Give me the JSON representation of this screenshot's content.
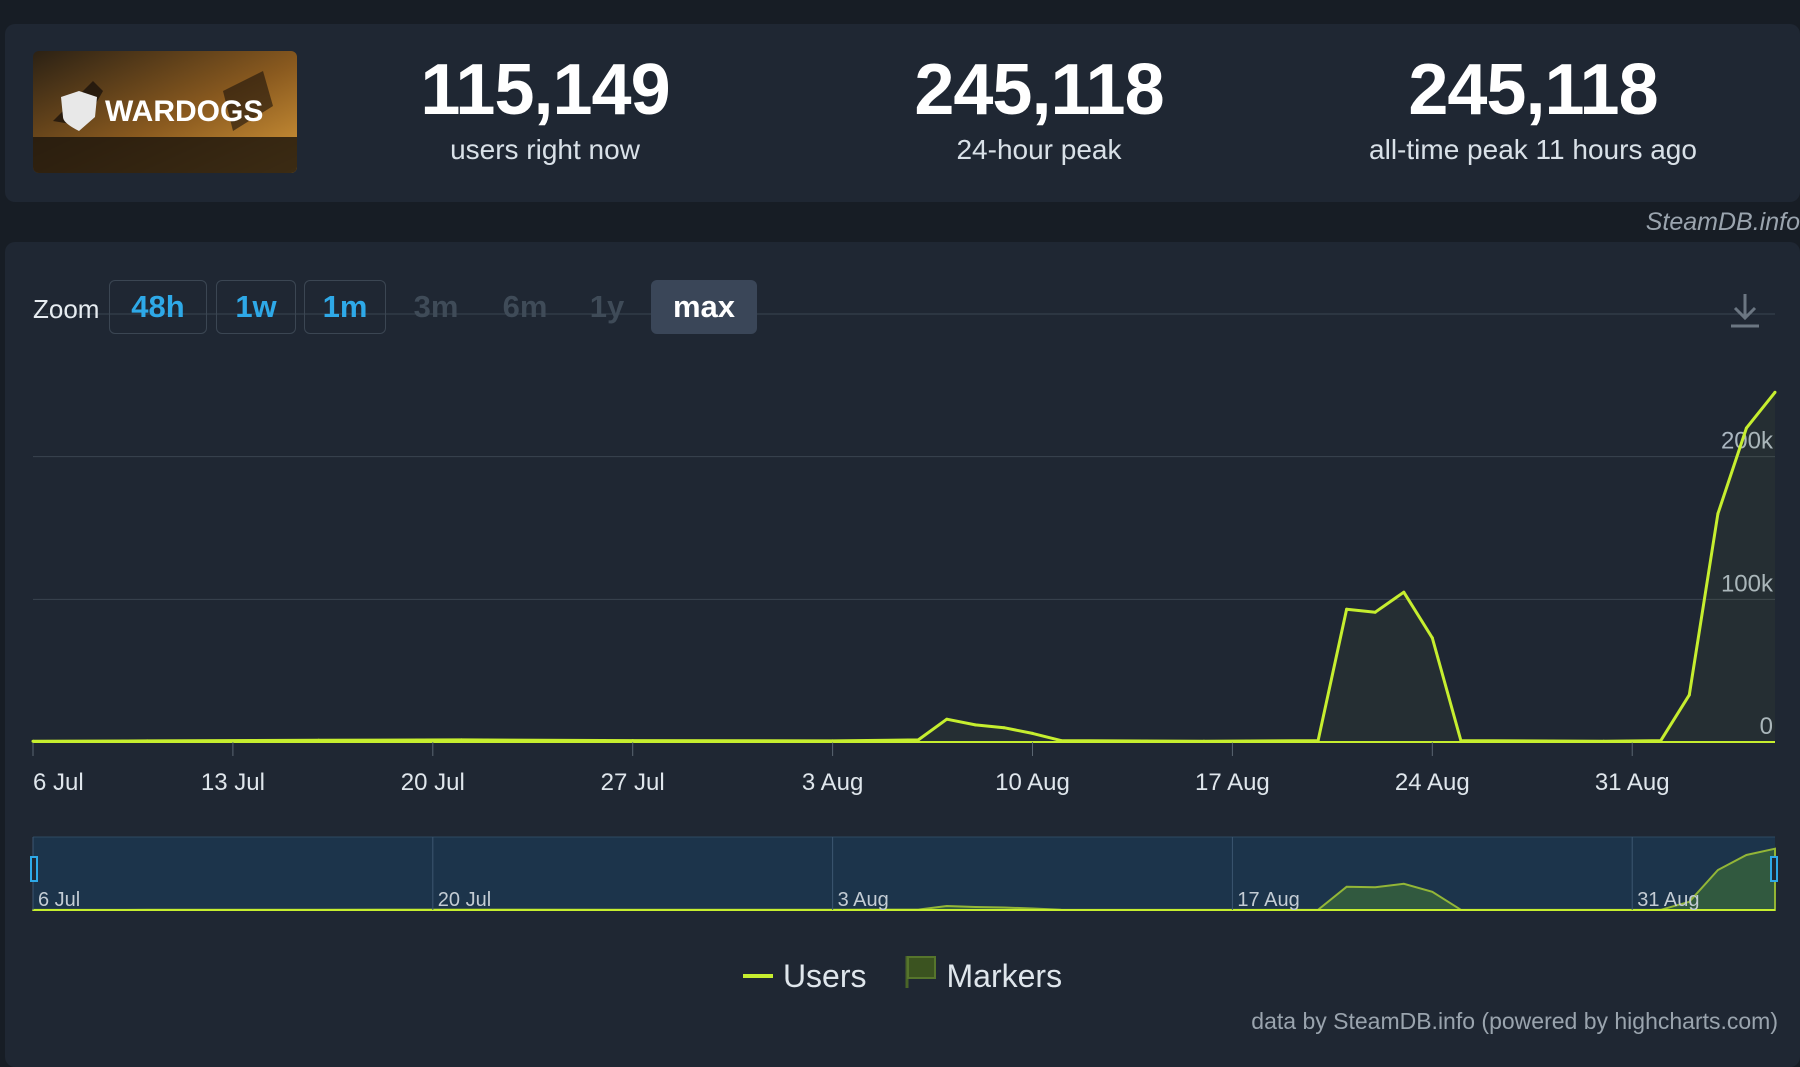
{
  "game": {
    "logo_text": "WARDOGS"
  },
  "stats": [
    {
      "value": "115,149",
      "label": "users right now"
    },
    {
      "value": "245,118",
      "label": "24-hour peak"
    },
    {
      "value": "245,118",
      "label": "all-time peak 11 hours ago"
    }
  ],
  "credit_top": "SteamDB.info",
  "zoom": {
    "label": "Zoom",
    "buttons": [
      {
        "label": "48h",
        "state": "enabled"
      },
      {
        "label": "1w",
        "state": "enabled"
      },
      {
        "label": "1m",
        "state": "enabled"
      },
      {
        "label": "3m",
        "state": "disabled"
      },
      {
        "label": "6m",
        "state": "disabled"
      },
      {
        "label": "1y",
        "state": "disabled"
      },
      {
        "label": "max",
        "state": "active"
      }
    ]
  },
  "legend": {
    "users": "Users",
    "markers": "Markers"
  },
  "credit_bottom": "data by SteamDB.info (powered by highcharts.com)",
  "colors": {
    "series": "#c6ee2f",
    "accent": "#2ea9e8",
    "background": "#171d25",
    "panel": "#1f2733"
  },
  "icons": {
    "download": "download-icon",
    "flag": "flag-icon"
  },
  "chart_data": {
    "type": "line",
    "x_start": "2024-07-06",
    "y_ticks": [
      "0",
      "100k",
      "200k"
    ],
    "ylim": [
      0,
      300000
    ],
    "x_tick_labels": [
      "6 Jul",
      "13 Jul",
      "20 Jul",
      "27 Jul",
      "3 Aug",
      "10 Aug",
      "17 Aug",
      "24 Aug",
      "31 Aug"
    ],
    "navigator_labels": [
      "6 Jul",
      "20 Jul",
      "3 Aug",
      "17 Aug",
      "31 Aug"
    ],
    "series": [
      {
        "name": "Users",
        "points": [
          [
            "2024-07-06",
            500
          ],
          [
            "2024-07-10",
            800
          ],
          [
            "2024-07-16",
            1200
          ],
          [
            "2024-07-21",
            1500
          ],
          [
            "2024-07-27",
            1000
          ],
          [
            "2024-08-03",
            800
          ],
          [
            "2024-08-06",
            1500
          ],
          [
            "2024-08-07",
            16000
          ],
          [
            "2024-08-08",
            12000
          ],
          [
            "2024-08-09",
            10000
          ],
          [
            "2024-08-10",
            6000
          ],
          [
            "2024-08-11",
            1000
          ],
          [
            "2024-08-16",
            500
          ],
          [
            "2024-08-20",
            1000
          ],
          [
            "2024-08-21",
            93000
          ],
          [
            "2024-08-22",
            91000
          ],
          [
            "2024-08-23",
            105000
          ],
          [
            "2024-08-24",
            73000
          ],
          [
            "2024-08-25",
            1000
          ],
          [
            "2024-08-30",
            500
          ],
          [
            "2024-09-01",
            1000
          ],
          [
            "2024-09-02",
            33000
          ],
          [
            "2024-09-03",
            160000
          ],
          [
            "2024-09-04",
            220000
          ],
          [
            "2024-09-05",
            245118
          ]
        ]
      }
    ]
  }
}
